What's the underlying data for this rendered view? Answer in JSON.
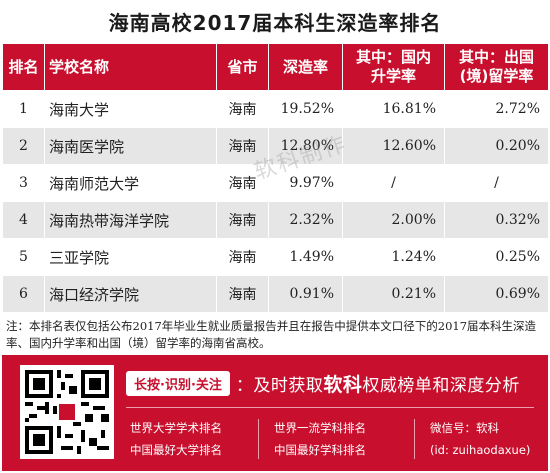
{
  "title": "海南高校2017届本科生深造率排名",
  "table": {
    "headers": [
      "排名",
      "学校名称",
      "省市",
      "深造率",
      "其中：国内\n升学率",
      "其中：出国\n(境)留学率"
    ],
    "rows": [
      {
        "rank": "1",
        "school": "海南大学",
        "province": "海南",
        "rate": "19.52%",
        "domestic": "16.81%",
        "abroad": "2.72%"
      },
      {
        "rank": "2",
        "school": "海南医学院",
        "province": "海南",
        "rate": "12.80%",
        "domestic": "12.60%",
        "abroad": "0.20%"
      },
      {
        "rank": "3",
        "school": "海南师范大学",
        "province": "海南",
        "rate": "9.97%",
        "domestic": "/",
        "abroad": "/"
      },
      {
        "rank": "4",
        "school": "海南热带海洋学院",
        "province": "海南",
        "rate": "2.32%",
        "domestic": "2.00%",
        "abroad": "0.32%"
      },
      {
        "rank": "5",
        "school": "三亚学院",
        "province": "海南",
        "rate": "1.49%",
        "domestic": "1.24%",
        "abroad": "0.25%"
      },
      {
        "rank": "6",
        "school": "海口经济学院",
        "province": "海南",
        "rate": "0.91%",
        "domestic": "0.21%",
        "abroad": "0.69%"
      }
    ]
  },
  "watermark": "软科制作",
  "note": "注：本排名表仅包括公布2017年毕业生就业质量报告并且在报告中提供本文口径下的2017届本科生深造率、国内升学率和出国（境）留学率的海南省高校。",
  "banner": {
    "cta_pill": "长按·识别·关注",
    "cta_prefix": "：及时获取",
    "cta_brand": "软科",
    "cta_suffix": "权威榜单和深度分析",
    "links_col1": [
      "世界大学学术排名",
      "中国最好大学排名"
    ],
    "links_col2": [
      "世界一流学科排名",
      "中国最好学科排名"
    ],
    "wechat_label": "微信号：软科",
    "wechat_id": "(id: zuihaodaxue)",
    "colors": {
      "brand_red": "#c8102e",
      "stripe_gray": "#e6e6e6"
    }
  }
}
